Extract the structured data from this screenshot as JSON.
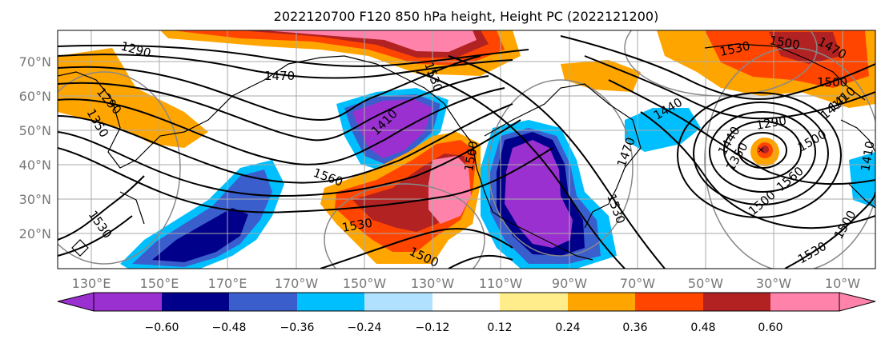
{
  "title": "2022120700 F120 850 hPa height, Height PC (2022121200)",
  "map": {
    "lat_labels": [
      "70°N",
      "60°N",
      "50°N",
      "40°N",
      "30°N",
      "20°N"
    ],
    "lon_labels": [
      "130°E",
      "150°E",
      "170°E",
      "170°W",
      "150°W",
      "130°W",
      "110°W",
      "90°W",
      "70°W",
      "50°W",
      "30°W",
      "10°W"
    ],
    "contour_labels": [
      "1290",
      "1470",
      "1290",
      "1350",
      "1560",
      "1440",
      "1410",
      "1530",
      "1500",
      "1530",
      "1500",
      "1560",
      "1530",
      "1530",
      "1470",
      "1470",
      "1500",
      "1530",
      "1500",
      "1410",
      "1440",
      "1350",
      "1290",
      "1500",
      "1560",
      "1410",
      "1530",
      "1500",
      "1410"
    ]
  },
  "colorbar": {
    "tick_labels": [
      "−0.60",
      "−0.48",
      "−0.36",
      "−0.24",
      "−0.12",
      "0.12",
      "0.24",
      "0.36",
      "0.48",
      "0.60"
    ],
    "colors": [
      "#9b30d0",
      "#00008b",
      "#3a5fcd",
      "#00bfff",
      "#b0e2ff",
      "#ffffff",
      "#ffec8b",
      "#ffa500",
      "#ff4500",
      "#b22222",
      "#ff82ab"
    ]
  }
}
